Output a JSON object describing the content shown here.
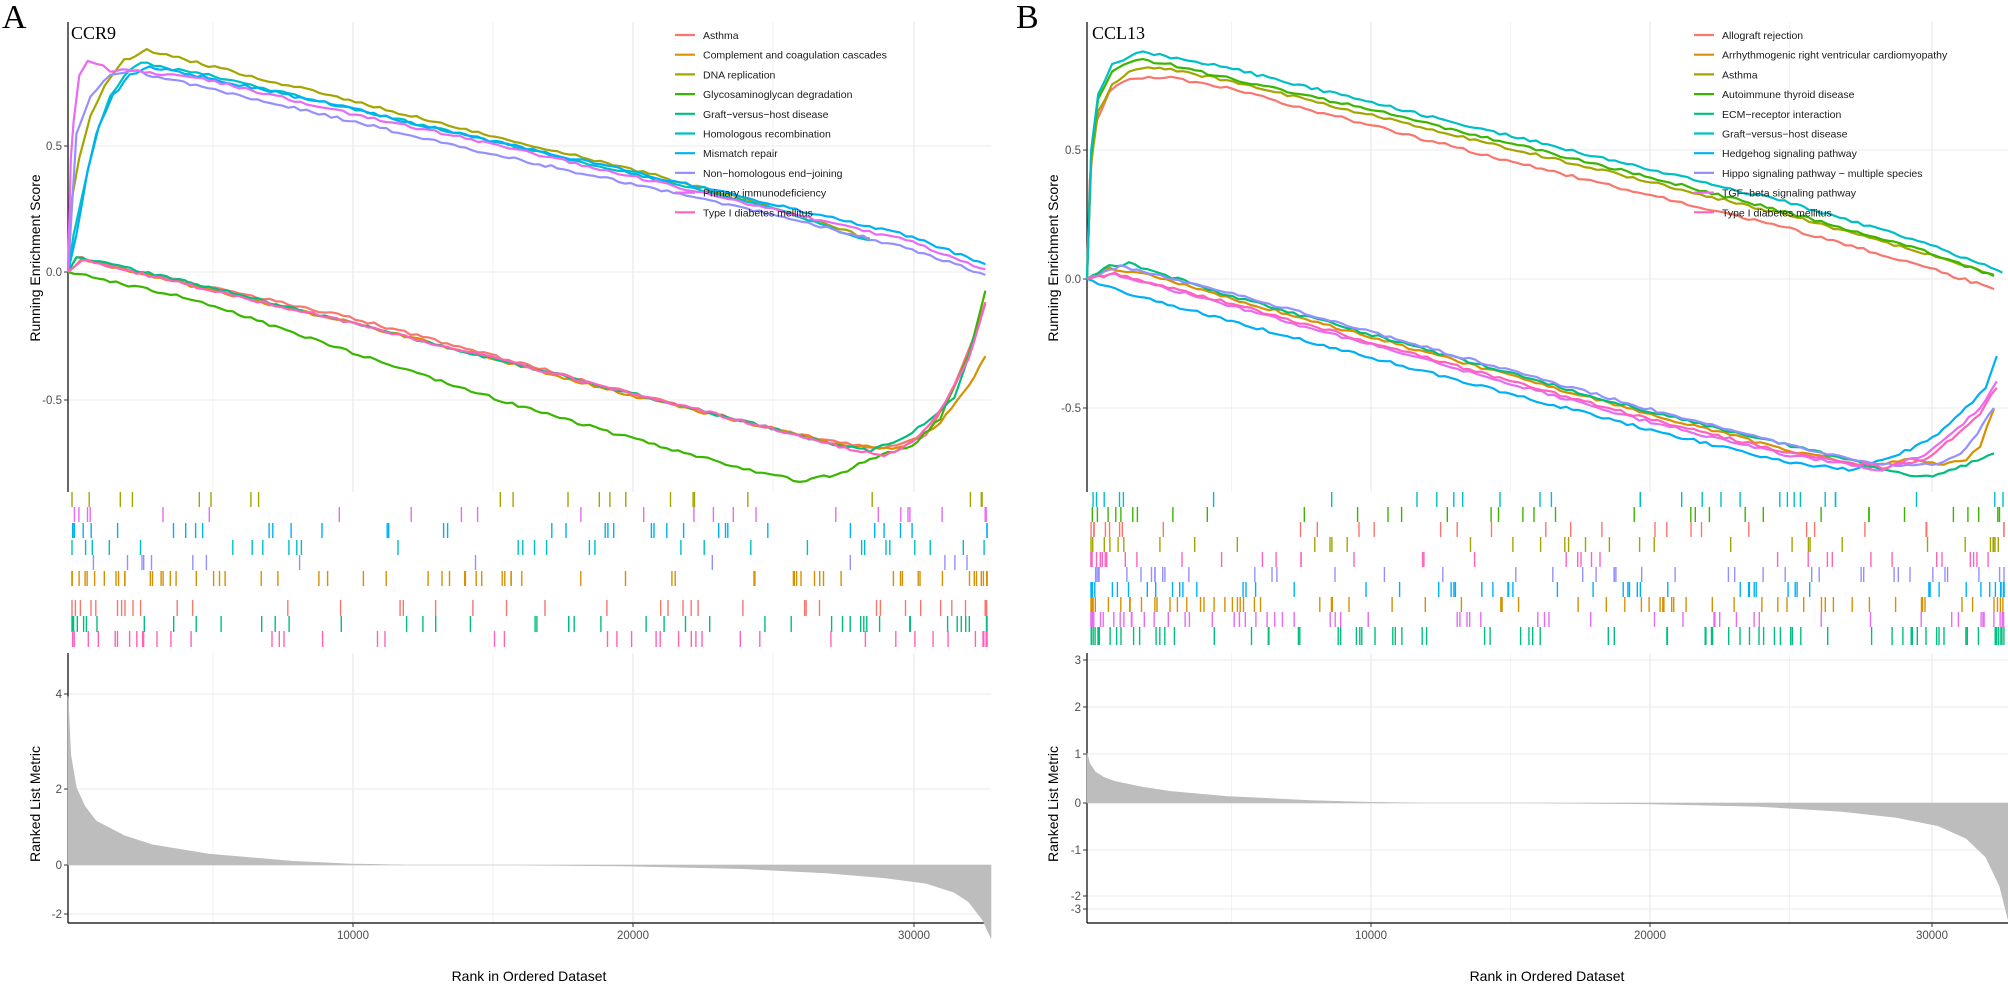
{
  "figure": {
    "panels": [
      {
        "letter": "A",
        "gene": "CCR9",
        "ylabel_top": "Running Enrichment Score",
        "ylabel_bottom": "Ranked List Metric",
        "xlabel": "Rank in Ordered Dataset",
        "x_ticks": [
          "10000",
          "20000",
          "30000"
        ],
        "es_ticks": [
          "0.5",
          "0.0",
          "-0.5"
        ],
        "metric_ticks": [
          "4",
          "2",
          "0",
          "-2"
        ]
      },
      {
        "letter": "B",
        "gene": "CCL13",
        "ylabel_top": "Running Enrichment Score",
        "ylabel_bottom": "Ranked List Metric",
        "xlabel": "Rank in Ordered Dataset",
        "x_ticks": [
          "10000",
          "20000",
          "30000"
        ],
        "es_ticks": [
          "0.5",
          "0.0",
          "-0.5"
        ],
        "metric_ticks": [
          "3",
          "2",
          "1",
          "0",
          "-1",
          "-2",
          "-3"
        ]
      }
    ]
  },
  "chart_data": [
    {
      "type": "line",
      "title": "CCR9",
      "xlabel": "Rank in Ordered Dataset",
      "ylabel": "Running Enrichment Score",
      "xlim": [
        0,
        32800
      ],
      "ylim": [
        -0.9,
        0.97
      ],
      "legend_position": "top-right",
      "grid": true,
      "series": [
        {
          "name": "Asthma",
          "color": "#F8766D",
          "x": [
            0,
            300,
            2000,
            5000,
            10000,
            15000,
            20000,
            25000,
            27000,
            29000,
            30500,
            31500,
            32200,
            32600
          ],
          "y": [
            0,
            0.06,
            0.01,
            -0.06,
            -0.18,
            -0.33,
            -0.48,
            -0.62,
            -0.67,
            -0.7,
            -0.65,
            -0.45,
            -0.25,
            -0.12
          ]
        },
        {
          "name": "Complement and coagulation cascades",
          "color": "#D89000",
          "x": [
            0,
            500,
            5000,
            10000,
            15000,
            20000,
            25000,
            27500,
            29500,
            31000,
            32000,
            32600
          ],
          "y": [
            0,
            0.05,
            -0.07,
            -0.2,
            -0.34,
            -0.49,
            -0.62,
            -0.69,
            -0.7,
            -0.6,
            -0.45,
            -0.34
          ]
        },
        {
          "name": "DNA replication",
          "color": "#A3A500",
          "x": [
            0,
            150,
            400,
            800,
            1300,
            2000,
            2800,
            3500,
            5000,
            10000,
            15000,
            20000,
            25000,
            28500
          ],
          "y": [
            0,
            0.3,
            0.45,
            0.62,
            0.74,
            0.84,
            0.88,
            0.86,
            0.82,
            0.68,
            0.54,
            0.41,
            0.26,
            0.13
          ]
        },
        {
          "name": "Glycosaminoglycan degradation",
          "color": "#39B600",
          "x": [
            0,
            4500,
            5000,
            8000,
            12000,
            16000,
            20000,
            24000,
            26000,
            27500,
            28500,
            30000,
            31000,
            32000,
            32600
          ],
          "y": [
            0,
            -0.11,
            -0.13,
            -0.24,
            -0.39,
            -0.53,
            -0.66,
            -0.78,
            -0.83,
            -0.8,
            -0.74,
            -0.69,
            -0.58,
            -0.33,
            -0.08
          ]
        },
        {
          "name": "Graft−versus−host disease",
          "color": "#00BF7D",
          "x": [
            0,
            300,
            5000,
            10000,
            15000,
            20000,
            25000,
            27000,
            28500,
            30000,
            31500,
            32400
          ],
          "y": [
            0,
            0.06,
            -0.06,
            -0.2,
            -0.34,
            -0.48,
            -0.62,
            -0.68,
            -0.71,
            -0.64,
            -0.5,
            -0.2
          ]
        },
        {
          "name": "Homologous recombination",
          "color": "#00BFC4",
          "x": [
            0,
            200,
            600,
            1000,
            1500,
            2000,
            2600,
            3500,
            5000,
            10000,
            15000,
            20000,
            25000,
            28500
          ],
          "y": [
            0,
            0.15,
            0.35,
            0.55,
            0.7,
            0.78,
            0.83,
            0.81,
            0.78,
            0.65,
            0.52,
            0.39,
            0.26,
            0.12
          ]
        },
        {
          "name": "Mismatch repair",
          "color": "#00B0F6",
          "x": [
            0,
            300,
            700,
            1100,
            1600,
            2200,
            2900,
            3500,
            5000,
            10000,
            15000,
            20000,
            25000,
            30000,
            32600
          ],
          "y": [
            0,
            0.15,
            0.4,
            0.58,
            0.7,
            0.78,
            0.81,
            0.8,
            0.77,
            0.65,
            0.52,
            0.4,
            0.27,
            0.14,
            0.03
          ]
        },
        {
          "name": "Non−homologous end−joining",
          "color": "#9590FF",
          "x": [
            0,
            300,
            800,
            1500,
            2200,
            3000,
            5000,
            10000,
            15000,
            20000,
            25000,
            30000,
            32600
          ],
          "y": [
            0,
            0.55,
            0.7,
            0.78,
            0.8,
            0.78,
            0.73,
            0.6,
            0.47,
            0.35,
            0.23,
            0.09,
            -0.01
          ]
        },
        {
          "name": "Primary immunodeficiency",
          "color": "#E76BF3",
          "x": [
            0,
            100,
            200,
            400,
            700,
            1000,
            1500,
            2500,
            5000,
            10000,
            15000,
            20000,
            25000,
            30000,
            32600
          ],
          "y": [
            0,
            0.45,
            0.6,
            0.78,
            0.84,
            0.83,
            0.8,
            0.8,
            0.76,
            0.63,
            0.51,
            0.38,
            0.25,
            0.12,
            0.01
          ]
        },
        {
          "name": "Type I diabetes mellitus",
          "color": "#FF62BC",
          "x": [
            0,
            500,
            5000,
            10000,
            15000,
            20000,
            25000,
            27000,
            28000,
            29000,
            30000,
            31000,
            32000,
            32600
          ],
          "y": [
            0,
            0.05,
            -0.07,
            -0.2,
            -0.34,
            -0.48,
            -0.62,
            -0.68,
            -0.71,
            -0.73,
            -0.68,
            -0.55,
            -0.35,
            -0.13
          ]
        }
      ],
      "ranked_metric": {
        "ylabel": "Ranked List Metric",
        "ylim": [
          -2.5,
          5
        ],
        "x": [
          0,
          100,
          300,
          600,
          1000,
          2000,
          3000,
          5000,
          8000,
          10000,
          12000,
          14000,
          16000,
          20000,
          24000,
          27000,
          29000,
          30500,
          31500,
          32000,
          32500,
          32800
        ],
        "y": [
          4.6,
          3.0,
          2.1,
          1.6,
          1.2,
          0.8,
          0.55,
          0.3,
          0.1,
          0.03,
          0.0,
          0.0,
          0.0,
          -0.03,
          -0.1,
          -0.22,
          -0.35,
          -0.5,
          -0.75,
          -1.0,
          -1.5,
          -2.0
        ]
      }
    },
    {
      "type": "line",
      "title": "CCL13",
      "xlabel": "Rank in Ordered Dataset",
      "ylabel": "Running Enrichment Score",
      "xlim": [
        0,
        33000
      ],
      "ylim": [
        -0.85,
        0.99
      ],
      "legend_position": "top-right",
      "grid": true,
      "series": [
        {
          "name": "Allograft rejection",
          "color": "#F8766D",
          "x": [
            0,
            100,
            300,
            800,
            1300,
            2000,
            3000,
            5000,
            10000,
            15000,
            20000,
            25000,
            30000,
            32500
          ],
          "y": [
            0,
            0.38,
            0.6,
            0.72,
            0.77,
            0.78,
            0.78,
            0.74,
            0.6,
            0.46,
            0.33,
            0.2,
            0.05,
            -0.04
          ]
        },
        {
          "name": "Arrhythmogenic right ventricular cardiomyopathy",
          "color": "#D89000",
          "x": [
            0,
            800,
            2000,
            5000,
            10000,
            15000,
            20000,
            25000,
            28000,
            29500,
            30500,
            31500,
            32000,
            32500
          ],
          "y": [
            0,
            0.04,
            0.02,
            -0.07,
            -0.22,
            -0.37,
            -0.52,
            -0.66,
            -0.73,
            -0.7,
            -0.72,
            -0.7,
            -0.65,
            -0.5
          ]
        },
        {
          "name": "Asthma",
          "color": "#A3A500",
          "x": [
            0,
            150,
            400,
            900,
            1500,
            2000,
            3000,
            5000,
            10000,
            15000,
            20000,
            25000,
            30000,
            32500
          ],
          "y": [
            0,
            0.45,
            0.65,
            0.75,
            0.8,
            0.82,
            0.81,
            0.77,
            0.64,
            0.51,
            0.38,
            0.25,
            0.1,
            0.02
          ]
        },
        {
          "name": "Autoimmune thyroid disease",
          "color": "#39B600",
          "x": [
            0,
            150,
            400,
            900,
            1500,
            2000,
            3000,
            5000,
            10000,
            15000,
            20000,
            25000,
            30000,
            32500
          ],
          "y": [
            0,
            0.48,
            0.7,
            0.8,
            0.84,
            0.85,
            0.83,
            0.78,
            0.66,
            0.53,
            0.4,
            0.26,
            0.11,
            0.01
          ]
        },
        {
          "name": "ECM−receptor interaction",
          "color": "#00BF7D",
          "x": [
            0,
            800,
            1500,
            5000,
            10000,
            15000,
            20000,
            25000,
            28000,
            29500,
            30500,
            31500,
            32500
          ],
          "y": [
            0,
            0.05,
            0.06,
            -0.06,
            -0.21,
            -0.36,
            -0.51,
            -0.64,
            -0.72,
            -0.76,
            -0.76,
            -0.72,
            -0.68
          ]
        },
        {
          "name": "Graft−versus−host disease",
          "color": "#00BFC4",
          "x": [
            0,
            150,
            400,
            900,
            1500,
            2000,
            3000,
            5000,
            10000,
            15000,
            20000,
            25000,
            30000,
            32800
          ],
          "y": [
            0,
            0.5,
            0.72,
            0.83,
            0.86,
            0.88,
            0.86,
            0.82,
            0.69,
            0.56,
            0.43,
            0.3,
            0.14,
            0.03
          ]
        },
        {
          "name": "Hedgehog signaling pathway",
          "color": "#00B0F6",
          "x": [
            0,
            1000,
            5000,
            10000,
            15000,
            20000,
            25000,
            27500,
            28500,
            29500,
            30500,
            31500,
            32200,
            32600
          ],
          "y": [
            0,
            -0.04,
            -0.16,
            -0.3,
            -0.44,
            -0.58,
            -0.71,
            -0.74,
            -0.7,
            -0.66,
            -0.6,
            -0.5,
            -0.42,
            -0.3
          ]
        },
        {
          "name": "Hippo signaling pathway − multiple species",
          "color": "#9590FF",
          "x": [
            0,
            1200,
            2000,
            5000,
            10000,
            15000,
            20000,
            25000,
            28500,
            30500,
            31500,
            32500
          ],
          "y": [
            0,
            0.05,
            0.03,
            -0.05,
            -0.2,
            -0.35,
            -0.5,
            -0.64,
            -0.72,
            -0.72,
            -0.66,
            -0.5
          ]
        },
        {
          "name": "TGF−beta signaling pathway",
          "color": "#E76BF3",
          "x": [
            0,
            1000,
            5000,
            10000,
            15000,
            20000,
            25000,
            28500,
            30000,
            31000,
            32000,
            32600
          ],
          "y": [
            0,
            0.02,
            -0.1,
            -0.25,
            -0.4,
            -0.55,
            -0.68,
            -0.74,
            -0.68,
            -0.6,
            -0.5,
            -0.4
          ]
        },
        {
          "name": "Type I diabetes mellitus",
          "color": "#FF62BC",
          "x": [
            0,
            1000,
            5000,
            10000,
            15000,
            20000,
            25000,
            28500,
            30000,
            31000,
            32000,
            32600
          ],
          "y": [
            0,
            0.02,
            -0.09,
            -0.24,
            -0.39,
            -0.54,
            -0.67,
            -0.73,
            -0.7,
            -0.62,
            -0.52,
            -0.42
          ]
        }
      ],
      "ranked_metric": {
        "ylabel": "Ranked List Metric",
        "ylim": [
          -3.3,
          3.2
        ],
        "x": [
          0,
          100,
          300,
          600,
          1000,
          2000,
          3000,
          5000,
          8000,
          10000,
          12000,
          14000,
          16000,
          20000,
          24000,
          27000,
          29000,
          30500,
          31500,
          32200,
          32700,
          33000
        ],
        "y": [
          1.2,
          0.95,
          0.75,
          0.62,
          0.52,
          0.38,
          0.28,
          0.16,
          0.06,
          0.02,
          0.0,
          0.0,
          0.0,
          -0.02,
          -0.08,
          -0.2,
          -0.35,
          -0.55,
          -0.85,
          -1.3,
          -2.0,
          -2.8
        ]
      }
    }
  ]
}
